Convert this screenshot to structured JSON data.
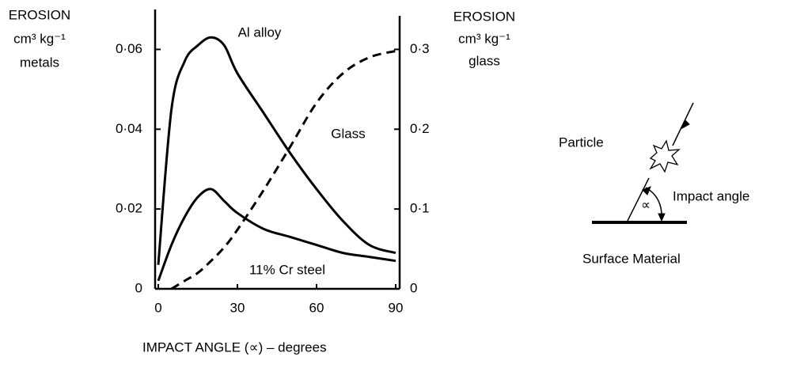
{
  "chart_data": {
    "type": "line",
    "ylabel": [
      "EROSION",
      "cm³ kg⁻¹",
      "metals"
    ],
    "y2label": [
      "EROSION",
      "cm³ kg⁻¹",
      "glass"
    ],
    "xlabel": "IMPACT ANGLE (∝) – degrees",
    "x": [
      0,
      5,
      10,
      15,
      20,
      25,
      30,
      40,
      50,
      60,
      70,
      80,
      90
    ],
    "series": [
      {
        "name": "Al alloy",
        "color": "#000000",
        "dash": false,
        "values": [
          0.006,
          0.045,
          0.057,
          0.061,
          0.063,
          0.061,
          0.054,
          0.044,
          0.034,
          0.025,
          0.017,
          0.011,
          0.009
        ]
      },
      {
        "name": "11% Cr steel",
        "color": "#000000",
        "dash": false,
        "values": [
          0.002,
          0.011,
          0.018,
          0.023,
          0.025,
          0.022,
          0.019,
          0.015,
          0.013,
          0.011,
          0.009,
          0.008,
          0.007
        ]
      },
      {
        "name": "Glass",
        "color": "#000000",
        "dash": true,
        "axis": "y2",
        "values": [
          null,
          0.0,
          0.01,
          0.02,
          0.035,
          0.052,
          0.074,
          0.124,
          0.178,
          0.233,
          0.27,
          0.29,
          0.298
        ]
      }
    ],
    "xlim": [
      0,
      90
    ],
    "xticks": [
      0,
      30,
      60,
      90
    ],
    "ylim": [
      0,
      0.07
    ],
    "yticks": [
      0,
      {
        "value": 0.02,
        "label": "0·02"
      },
      {
        "value": 0.04,
        "label": "0·04"
      },
      {
        "value": 0.06,
        "label": "0·06"
      }
    ],
    "y2lim": [
      0,
      0.35
    ],
    "y2ticks": [
      0,
      {
        "value": 0.1,
        "label": "0·1"
      },
      {
        "value": 0.2,
        "label": "0·2"
      },
      {
        "value": 0.3,
        "label": "0·3"
      }
    ],
    "grid": false
  },
  "diagram": {
    "particle": "Particle",
    "impact_angle": "Impact angle",
    "alpha": "∝",
    "surface": "Surface Material"
  }
}
